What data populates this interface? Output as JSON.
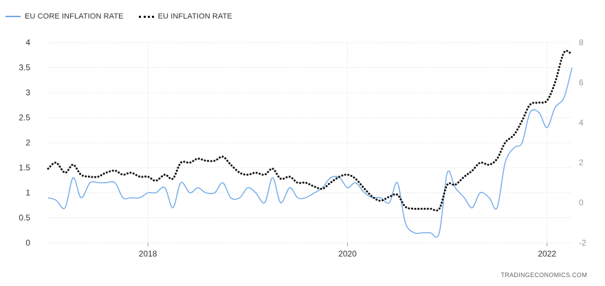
{
  "chart_data": {
    "type": "line",
    "watermark": "TRADINGECONOMICS.COM",
    "x_range": [
      2017.0,
      2022.25
    ],
    "x_ticks": [
      {
        "value": 2018,
        "label": "2018"
      },
      {
        "value": 2020,
        "label": "2020"
      },
      {
        "value": 2022,
        "label": "2022"
      }
    ],
    "y_left": {
      "min": 0,
      "max": 4,
      "ticks": [
        "0",
        "0.5",
        "1",
        "1.5",
        "2",
        "2.5",
        "3",
        "3.5",
        "4"
      ]
    },
    "y_right": {
      "min": -2,
      "max": 8,
      "ticks": [
        "-2",
        "0",
        "2",
        "4",
        "6",
        "8"
      ]
    },
    "legend_position": "top-left",
    "grid": true,
    "series": [
      {
        "name": "EU CORE INFLATION RATE",
        "axis": "left",
        "color": "#6fa8e8",
        "style": "solid",
        "points": [
          [
            2017.0,
            0.9
          ],
          [
            2017.08,
            0.85
          ],
          [
            2017.17,
            0.7
          ],
          [
            2017.25,
            1.3
          ],
          [
            2017.33,
            0.9
          ],
          [
            2017.42,
            1.2
          ],
          [
            2017.5,
            1.2
          ],
          [
            2017.58,
            1.2
          ],
          [
            2017.67,
            1.2
          ],
          [
            2017.75,
            0.9
          ],
          [
            2017.83,
            0.9
          ],
          [
            2017.92,
            0.9
          ],
          [
            2018.0,
            1.0
          ],
          [
            2018.08,
            1.0
          ],
          [
            2018.17,
            1.1
          ],
          [
            2018.25,
            0.7
          ],
          [
            2018.33,
            1.2
          ],
          [
            2018.42,
            1.0
          ],
          [
            2018.5,
            1.1
          ],
          [
            2018.58,
            1.0
          ],
          [
            2018.67,
            1.0
          ],
          [
            2018.75,
            1.2
          ],
          [
            2018.83,
            0.9
          ],
          [
            2018.92,
            0.9
          ],
          [
            2019.0,
            1.1
          ],
          [
            2019.08,
            1.0
          ],
          [
            2019.17,
            0.8
          ],
          [
            2019.25,
            1.3
          ],
          [
            2019.33,
            0.8
          ],
          [
            2019.42,
            1.1
          ],
          [
            2019.5,
            0.9
          ],
          [
            2019.58,
            0.9
          ],
          [
            2019.67,
            1.0
          ],
          [
            2019.75,
            1.1
          ],
          [
            2019.83,
            1.3
          ],
          [
            2019.92,
            1.3
          ],
          [
            2020.0,
            1.1
          ],
          [
            2020.08,
            1.2
          ],
          [
            2020.17,
            1.0
          ],
          [
            2020.25,
            0.9
          ],
          [
            2020.33,
            0.9
          ],
          [
            2020.42,
            0.8
          ],
          [
            2020.5,
            1.2
          ],
          [
            2020.58,
            0.4
          ],
          [
            2020.67,
            0.2
          ],
          [
            2020.75,
            0.2
          ],
          [
            2020.83,
            0.2
          ],
          [
            2020.92,
            0.2
          ],
          [
            2021.0,
            1.4
          ],
          [
            2021.08,
            1.1
          ],
          [
            2021.17,
            0.9
          ],
          [
            2021.25,
            0.7
          ],
          [
            2021.33,
            1.0
          ],
          [
            2021.42,
            0.9
          ],
          [
            2021.5,
            0.7
          ],
          [
            2021.58,
            1.6
          ],
          [
            2021.67,
            1.9
          ],
          [
            2021.75,
            2.0
          ],
          [
            2021.83,
            2.6
          ],
          [
            2021.92,
            2.6
          ],
          [
            2022.0,
            2.3
          ],
          [
            2022.08,
            2.7
          ],
          [
            2022.17,
            2.9
          ],
          [
            2022.25,
            3.5
          ]
        ]
      },
      {
        "name": "EU INFLATION RATE",
        "axis": "right",
        "color": "#111111",
        "style": "dotted",
        "points": [
          [
            2017.0,
            1.7
          ],
          [
            2017.08,
            2.0
          ],
          [
            2017.17,
            1.5
          ],
          [
            2017.25,
            1.9
          ],
          [
            2017.33,
            1.4
          ],
          [
            2017.42,
            1.3
          ],
          [
            2017.5,
            1.3
          ],
          [
            2017.58,
            1.5
          ],
          [
            2017.67,
            1.6
          ],
          [
            2017.75,
            1.4
          ],
          [
            2017.83,
            1.5
          ],
          [
            2017.92,
            1.3
          ],
          [
            2018.0,
            1.3
          ],
          [
            2018.08,
            1.1
          ],
          [
            2018.17,
            1.4
          ],
          [
            2018.25,
            1.2
          ],
          [
            2018.33,
            2.0
          ],
          [
            2018.42,
            2.0
          ],
          [
            2018.5,
            2.2
          ],
          [
            2018.58,
            2.1
          ],
          [
            2018.67,
            2.1
          ],
          [
            2018.75,
            2.3
          ],
          [
            2018.83,
            1.9
          ],
          [
            2018.92,
            1.5
          ],
          [
            2019.0,
            1.4
          ],
          [
            2019.08,
            1.5
          ],
          [
            2019.17,
            1.4
          ],
          [
            2019.25,
            1.7
          ],
          [
            2019.33,
            1.2
          ],
          [
            2019.42,
            1.3
          ],
          [
            2019.5,
            1.0
          ],
          [
            2019.58,
            1.0
          ],
          [
            2019.67,
            0.8
          ],
          [
            2019.75,
            0.7
          ],
          [
            2019.83,
            1.0
          ],
          [
            2019.92,
            1.3
          ],
          [
            2020.0,
            1.4
          ],
          [
            2020.08,
            1.2
          ],
          [
            2020.17,
            0.7
          ],
          [
            2020.25,
            0.3
          ],
          [
            2020.33,
            0.1
          ],
          [
            2020.42,
            0.3
          ],
          [
            2020.5,
            0.4
          ],
          [
            2020.58,
            -0.2
          ],
          [
            2020.67,
            -0.3
          ],
          [
            2020.75,
            -0.3
          ],
          [
            2020.83,
            -0.3
          ],
          [
            2020.92,
            -0.3
          ],
          [
            2021.0,
            0.9
          ],
          [
            2021.08,
            0.9
          ],
          [
            2021.17,
            1.3
          ],
          [
            2021.25,
            1.6
          ],
          [
            2021.33,
            2.0
          ],
          [
            2021.42,
            1.9
          ],
          [
            2021.5,
            2.2
          ],
          [
            2021.58,
            3.0
          ],
          [
            2021.67,
            3.4
          ],
          [
            2021.75,
            4.1
          ],
          [
            2021.83,
            4.9
          ],
          [
            2021.92,
            5.0
          ],
          [
            2022.0,
            5.1
          ],
          [
            2022.08,
            6.0
          ],
          [
            2022.17,
            7.5
          ],
          [
            2022.25,
            7.4
          ]
        ]
      }
    ]
  }
}
